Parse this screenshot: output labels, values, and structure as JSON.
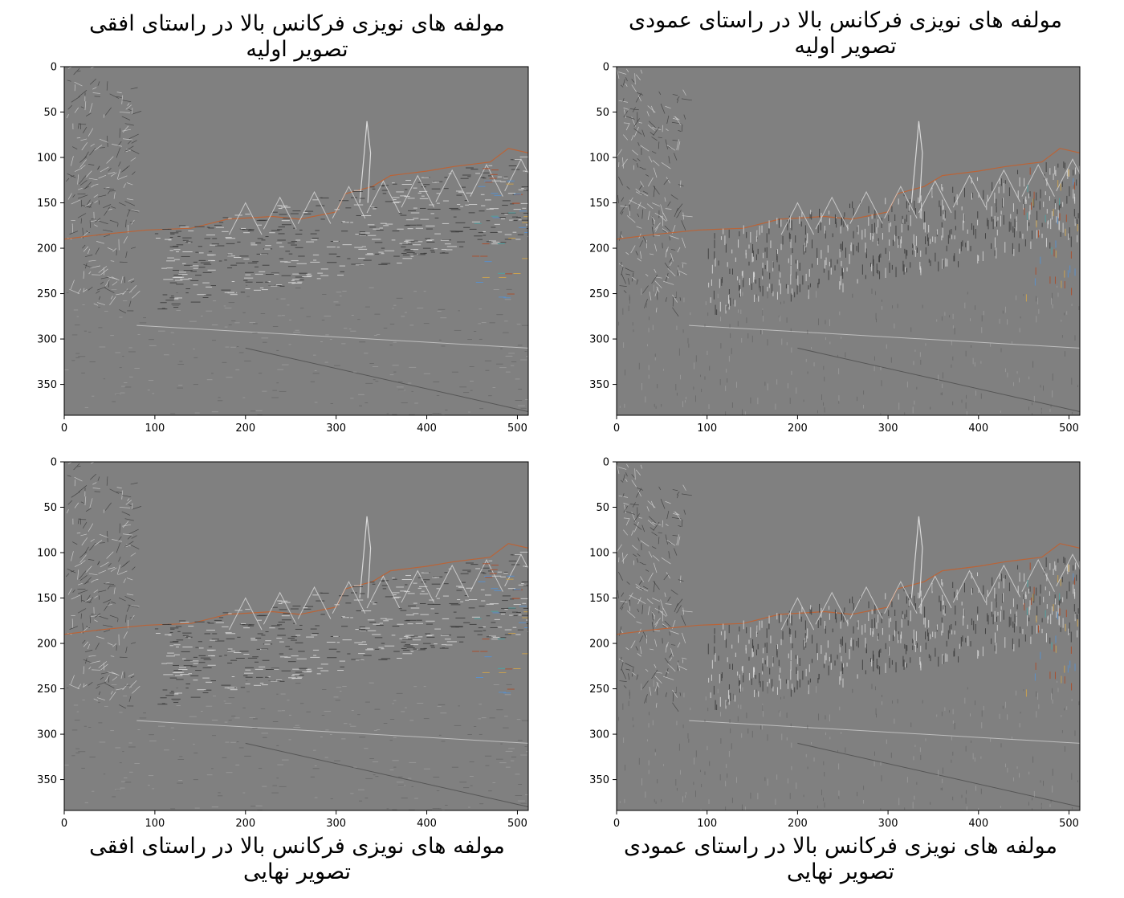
{
  "figure": {
    "background": "#ffffff",
    "image_gray": "#808080"
  },
  "chart_data": [
    {
      "type": "heatmap",
      "panel": "top-left",
      "title": "مولفه های نویزی فرکانس بالا در راستای افقی تصویر اولیه",
      "title_position": "top",
      "image_kind": "horizontal high-frequency component (initial image)",
      "xlim": [
        0,
        512
      ],
      "ylim": [
        384,
        0
      ],
      "xticks": [
        0,
        100,
        200,
        300,
        400,
        500
      ],
      "yticks": [
        0,
        50,
        100,
        150,
        200,
        250,
        300,
        350
      ],
      "xlabel": "",
      "ylabel": ""
    },
    {
      "type": "heatmap",
      "panel": "top-right",
      "title": "مولفه های نویزی فرکانس بالا در راستای عمودی تصویر اولیه",
      "title_position": "top",
      "image_kind": "vertical high-frequency component (initial image)",
      "xlim": [
        0,
        512
      ],
      "ylim": [
        384,
        0
      ],
      "xticks": [
        0,
        100,
        200,
        300,
        400,
        500
      ],
      "yticks": [
        0,
        50,
        100,
        150,
        200,
        250,
        300,
        350
      ],
      "xlabel": "",
      "ylabel": ""
    },
    {
      "type": "heatmap",
      "panel": "bottom-left",
      "title": "مولفه های نویزی فرکانس بالا در راستای افقی تصویر نهایی",
      "title_position": "bottom",
      "image_kind": "horizontal high-frequency component (final image)",
      "xlim": [
        0,
        512
      ],
      "ylim": [
        384,
        0
      ],
      "xticks": [
        0,
        100,
        200,
        300,
        400,
        500
      ],
      "yticks": [
        0,
        50,
        100,
        150,
        200,
        250,
        300,
        350
      ],
      "xlabel": "",
      "ylabel": ""
    },
    {
      "type": "heatmap",
      "panel": "bottom-right",
      "title": "مولفه های نویزی فرکانس بالا در راستای عمودی تصویر نهایی",
      "title_position": "bottom",
      "image_kind": "vertical high-frequency component (final image)",
      "xlim": [
        0,
        512
      ],
      "ylim": [
        384,
        0
      ],
      "xticks": [
        0,
        100,
        200,
        300,
        400,
        500
      ],
      "yticks": [
        0,
        50,
        100,
        150,
        200,
        250,
        300,
        350
      ],
      "xlabel": "",
      "ylabel": ""
    }
  ]
}
